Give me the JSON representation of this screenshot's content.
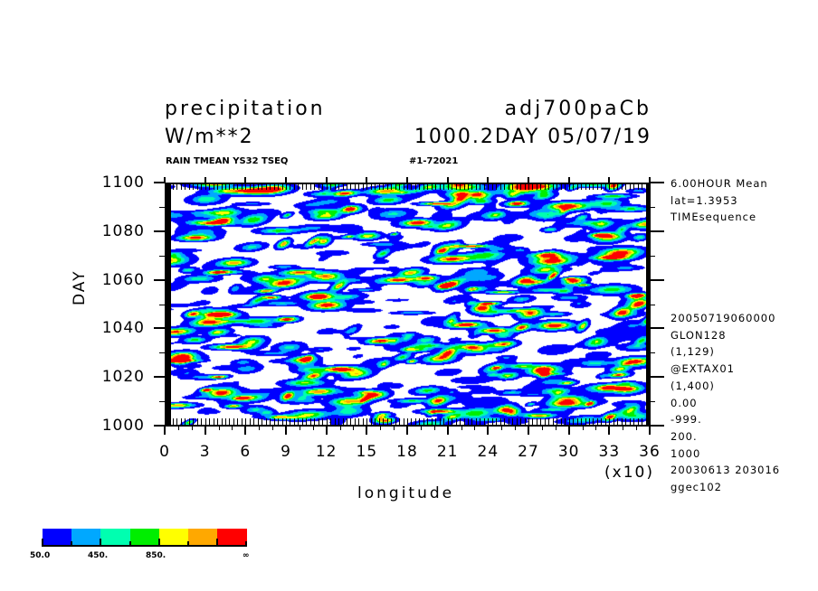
{
  "header": {
    "title_left": "precipitation",
    "title_right": "adj700paCb",
    "units": "W/m**2",
    "time_label": "1000.2DAY 05/07/19",
    "subtitle_left": "RAIN TMEAN YS32 TSEQ",
    "subtitle_right": "#1-72021"
  },
  "side_info": {
    "top": [
      "6.00HOUR Mean",
      "lat=1.3953",
      "TIMEsequence"
    ],
    "bottom": [
      "20050719060000",
      "GLON128",
      "(1,129)",
      "@EXTAX01",
      "(1,400)",
      "0.00",
      "-999.",
      "200.",
      "1000",
      "20030613 203016",
      "ggec102"
    ]
  },
  "chart_data": {
    "type": "heatmap",
    "title": "precipitation",
    "xlabel": "longitude",
    "ylabel": "DAY",
    "x_multiplier_label": "(x10)",
    "xlim": [
      0,
      36
    ],
    "ylim": [
      1000,
      1100
    ],
    "x_ticks": [
      "0",
      "3",
      "6",
      "9",
      "12",
      "15",
      "18",
      "21",
      "24",
      "27",
      "30",
      "33",
      "36"
    ],
    "y_ticks": [
      "1000",
      "1020",
      "1040",
      "1060",
      "1080",
      "1100"
    ],
    "contour_levels": [
      50,
      250,
      450,
      650,
      850,
      1050,
      1250
    ],
    "colors": [
      "#0000ff",
      "#00a8ff",
      "#00ffb0",
      "#00ee00",
      "#ffff00",
      "#ffa800",
      "#ff0000"
    ],
    "colorbar_labels": [
      "50.0",
      "450.",
      "850.",
      "∞"
    ]
  }
}
